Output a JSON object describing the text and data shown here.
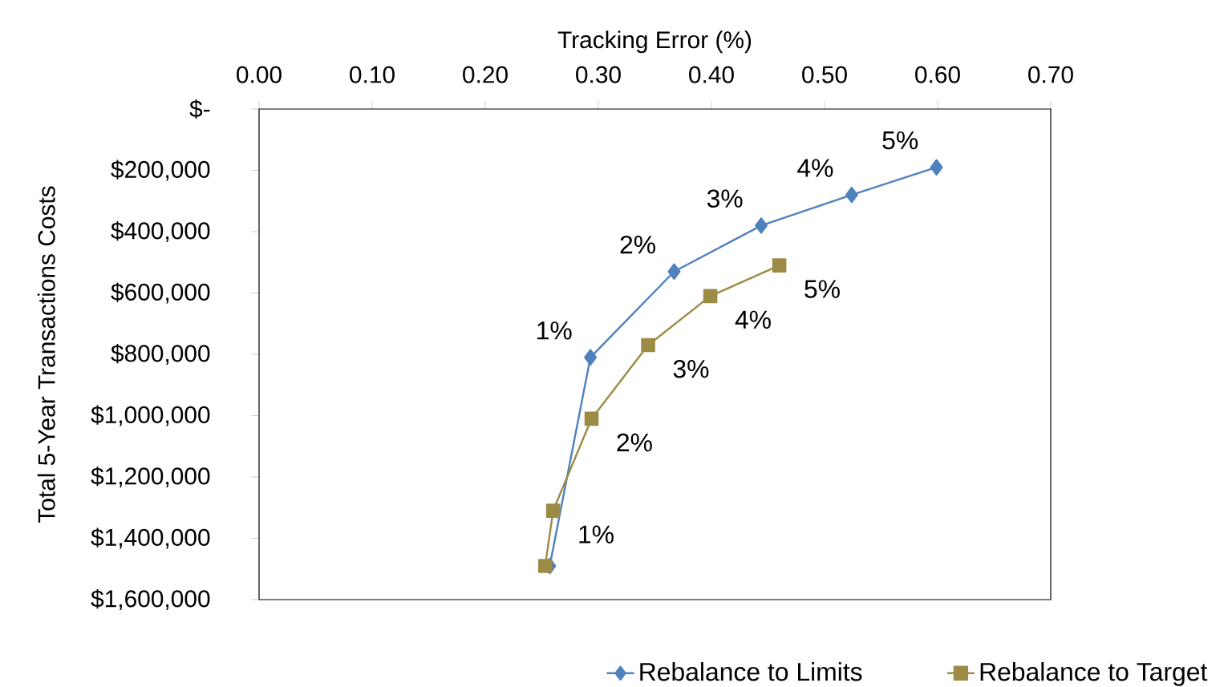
{
  "chart_data": {
    "type": "line",
    "xlabel": "Tracking Error (%)",
    "ylabel": "Total 5-Year Transactions Costs",
    "xlim": [
      0,
      0.7
    ],
    "xticks": [
      {
        "value": 0,
        "label": "0.00"
      },
      {
        "value": 0.1,
        "label": "0.10"
      },
      {
        "value": 0.2,
        "label": "0.20"
      },
      {
        "value": 0.3,
        "label": "0.30"
      },
      {
        "value": 0.4,
        "label": "0.40"
      },
      {
        "value": 0.5,
        "label": "0.50"
      },
      {
        "value": 0.6,
        "label": "0.60"
      },
      {
        "value": 0.7,
        "label": "0.70"
      }
    ],
    "ylim": [
      1600000,
      0
    ],
    "yticks": [
      {
        "value": 0,
        "label": "$-"
      },
      {
        "value": 200000,
        "label": "$200,000"
      },
      {
        "value": 400000,
        "label": "$400,000"
      },
      {
        "value": 600000,
        "label": "$600,000"
      },
      {
        "value": 800000,
        "label": "$800,000"
      },
      {
        "value": 1000000,
        "label": "$1,000,000"
      },
      {
        "value": 1200000,
        "label": "$1,200,000"
      },
      {
        "value": 1400000,
        "label": "$1,400,000"
      },
      {
        "value": 1600000,
        "label": "$1,600,000"
      }
    ],
    "series": [
      {
        "name": "Rebalance to Limits",
        "color": "#4f81bd",
        "marker": "diamond",
        "x": [
          0.257,
          0.293,
          0.367,
          0.444,
          0.524,
          0.599
        ],
        "values": [
          1490000,
          810000,
          530000,
          380000,
          280000,
          190000
        ]
      },
      {
        "name": "Rebalance to Target",
        "color": "#9c8b45",
        "marker": "square",
        "x": [
          0.253,
          0.26,
          0.294,
          0.344,
          0.399,
          0.46
        ],
        "values": [
          1490000,
          1310000,
          1010000,
          770000,
          610000,
          510000
        ]
      }
    ],
    "annotations": [
      {
        "text": "1%",
        "x": 0.293,
        "y": 810000
      },
      {
        "text": "2%",
        "x": 0.367,
        "y": 530000
      },
      {
        "text": "3%",
        "x": 0.444,
        "y": 380000
      },
      {
        "text": "4%",
        "x": 0.524,
        "y": 280000
      },
      {
        "text": "5%",
        "x": 0.599,
        "y": 190000
      },
      {
        "text": "1%",
        "x": 0.26,
        "y": 1310000
      },
      {
        "text": "2%",
        "x": 0.294,
        "y": 1010000
      },
      {
        "text": "3%",
        "x": 0.344,
        "y": 770000
      },
      {
        "text": "4%",
        "x": 0.399,
        "y": 610000
      },
      {
        "text": "5%",
        "x": 0.46,
        "y": 510000
      }
    ],
    "legend": "bottom right",
    "grid": false
  }
}
